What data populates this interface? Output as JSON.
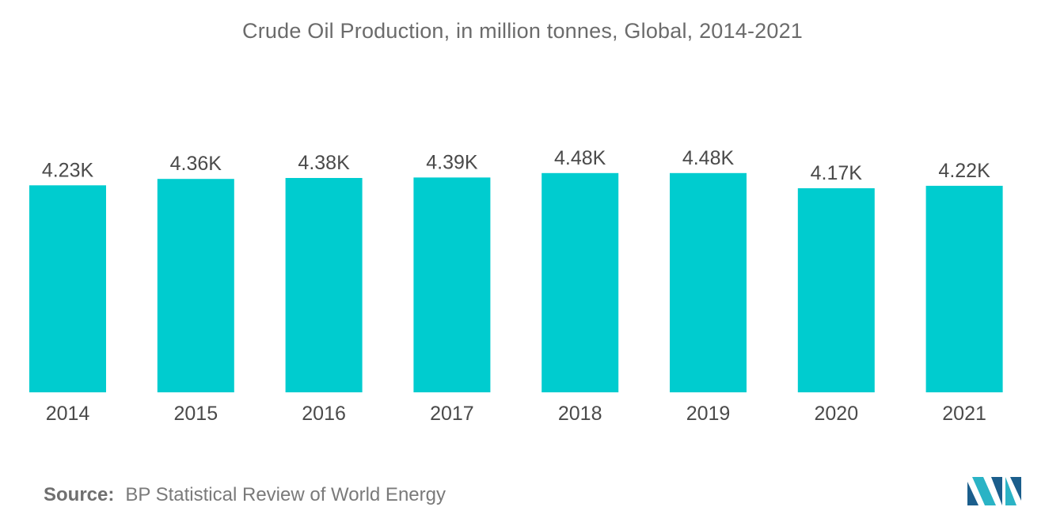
{
  "chart_data": {
    "type": "bar",
    "title": "Crude Oil Production, in million tonnes, Global, 2014-2021",
    "xlabel": "",
    "ylabel": "",
    "categories": [
      "2014",
      "2015",
      "2016",
      "2017",
      "2018",
      "2019",
      "2020",
      "2021"
    ],
    "values": [
      4230,
      4360,
      4380,
      4390,
      4480,
      4480,
      4170,
      4220
    ],
    "value_labels": [
      "4.23K",
      "4.36K",
      "4.38K",
      "4.39K",
      "4.48K",
      "4.48K",
      "4.17K",
      "4.22K"
    ],
    "ylim": [
      0,
      5000
    ],
    "grid": false,
    "legend": "none",
    "bar_color": "#00cccf"
  },
  "source": {
    "label": "Source:",
    "text": "BP Statistical Review of World Energy"
  },
  "logo": {
    "icon": "mordor-intelligence-logo-icon",
    "colors": [
      "#1b5e8c",
      "#2ab3c5"
    ]
  }
}
